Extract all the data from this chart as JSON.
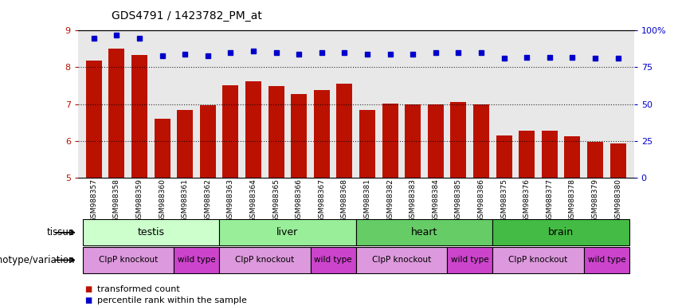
{
  "title": "GDS4791 / 1423782_PM_at",
  "samples": [
    "GSM988357",
    "GSM988358",
    "GSM988359",
    "GSM988360",
    "GSM988361",
    "GSM988362",
    "GSM988363",
    "GSM988364",
    "GSM988365",
    "GSM988366",
    "GSM988367",
    "GSM988368",
    "GSM988381",
    "GSM988382",
    "GSM988383",
    "GSM988384",
    "GSM988385",
    "GSM988386",
    "GSM988375",
    "GSM988376",
    "GSM988377",
    "GSM988378",
    "GSM988379",
    "GSM988380"
  ],
  "transformed_count": [
    8.18,
    8.52,
    8.33,
    6.61,
    6.83,
    6.97,
    7.52,
    7.62,
    7.48,
    7.28,
    7.38,
    7.55,
    6.83,
    7.02,
    7.0,
    7.0,
    7.05,
    7.0,
    6.15,
    6.28,
    6.27,
    6.12,
    5.97,
    5.93
  ],
  "percentile_rank": [
    95,
    97,
    95,
    83,
    84,
    83,
    85,
    86,
    85,
    84,
    85,
    85,
    84,
    84,
    84,
    85,
    85,
    85,
    81,
    82,
    82,
    82,
    81,
    81
  ],
  "bar_color": "#bb1100",
  "dot_color": "#0000cc",
  "ylim_left": [
    5,
    9
  ],
  "yticks_left": [
    5,
    6,
    7,
    8,
    9
  ],
  "ylim_right": [
    0,
    100
  ],
  "yticks_right": [
    0,
    25,
    50,
    75,
    100
  ],
  "yticklabels_right": [
    "0",
    "25",
    "50",
    "75",
    "100%"
  ],
  "dotted_lines": [
    6,
    7,
    8
  ],
  "tissues": [
    {
      "label": "testis",
      "start": 0,
      "end": 6,
      "color": "#ccffcc"
    },
    {
      "label": "liver",
      "start": 6,
      "end": 12,
      "color": "#99ee99"
    },
    {
      "label": "heart",
      "start": 12,
      "end": 18,
      "color": "#66cc66"
    },
    {
      "label": "brain",
      "start": 18,
      "end": 24,
      "color": "#44bb44"
    }
  ],
  "genotypes": [
    {
      "label": "ClpP knockout",
      "start": 0,
      "end": 4,
      "color": "#dd99dd"
    },
    {
      "label": "wild type",
      "start": 4,
      "end": 6,
      "color": "#cc44cc"
    },
    {
      "label": "ClpP knockout",
      "start": 6,
      "end": 10,
      "color": "#dd99dd"
    },
    {
      "label": "wild type",
      "start": 10,
      "end": 12,
      "color": "#cc44cc"
    },
    {
      "label": "ClpP knockout",
      "start": 12,
      "end": 16,
      "color": "#dd99dd"
    },
    {
      "label": "wild type",
      "start": 16,
      "end": 18,
      "color": "#cc44cc"
    },
    {
      "label": "ClpP knockout",
      "start": 18,
      "end": 22,
      "color": "#dd99dd"
    },
    {
      "label": "wild type",
      "start": 22,
      "end": 24,
      "color": "#cc44cc"
    }
  ],
  "tissue_row_label": "tissue",
  "genotype_row_label": "genotype/variation",
  "legend_items": [
    {
      "label": "transformed count",
      "color": "#bb1100"
    },
    {
      "label": "percentile rank within the sample",
      "color": "#0000cc"
    }
  ],
  "chart_bg": "#e8e8e8",
  "tick_bg": "#d0d0d0"
}
